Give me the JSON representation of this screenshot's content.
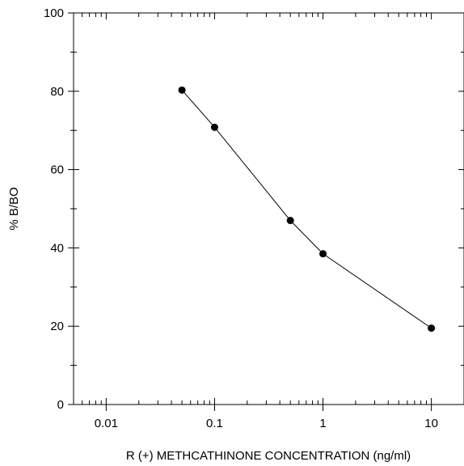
{
  "chart_data": {
    "type": "line",
    "title": "",
    "xlabel": "R (+) METHCATHINONE CONCENTRATION  (ng/ml)",
    "ylabel": "% B/BO",
    "x_scale": "log",
    "xlim": [
      0.005,
      20
    ],
    "ylim": [
      0,
      100
    ],
    "x_ticks": [
      0.01,
      0.1,
      1,
      10
    ],
    "x_tick_labels": [
      "0.01",
      "0.1",
      "1",
      "10"
    ],
    "y_ticks": [
      0,
      20,
      40,
      60,
      80,
      100
    ],
    "y_tick_labels": [
      "0",
      "20",
      "40",
      "60",
      "80",
      "100"
    ],
    "grid": false,
    "legend": "none",
    "series": [
      {
        "x": [
          0.05,
          0.1,
          0.5,
          1,
          10
        ],
        "y": [
          80.3,
          70.8,
          47.0,
          38.5,
          19.5
        ]
      }
    ],
    "colors": {
      "line": "#000000",
      "marker": "#000000",
      "axes": "#000000"
    }
  }
}
